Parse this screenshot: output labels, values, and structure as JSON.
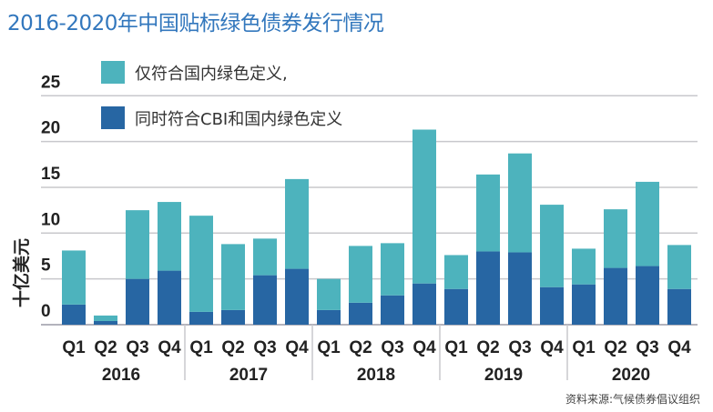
{
  "title": "2016-2020年中国贴标绿色债券发行情况",
  "source": "资料来源:气候债券倡议组织",
  "chart_data": {
    "type": "bar",
    "stacked": true,
    "title": "2016-2020年中国贴标绿色债券发行情况",
    "ylabel": "十亿美元",
    "ylim": [
      0,
      25
    ],
    "yticks": [
      0,
      5,
      10,
      15,
      20,
      25
    ],
    "grid": true,
    "legend_placement": "top-left",
    "years": [
      "2016",
      "2017",
      "2018",
      "2019",
      "2020"
    ],
    "quarters": [
      "Q1",
      "Q2",
      "Q3",
      "Q4"
    ],
    "categories": [
      "2016 Q1",
      "2016 Q2",
      "2016 Q3",
      "2016 Q4",
      "2017 Q1",
      "2017 Q2",
      "2017 Q3",
      "2017 Q4",
      "2018 Q1",
      "2018 Q2",
      "2018 Q3",
      "2018 Q4",
      "2019 Q1",
      "2019 Q2",
      "2019 Q3",
      "2019 Q4",
      "2020 Q1",
      "2020 Q2",
      "2020 Q3",
      "2020 Q4"
    ],
    "series": [
      {
        "name": "同时符合CBI和国内绿色定义",
        "color": "#2766a3",
        "values": [
          2.2,
          0.4,
          5.0,
          5.9,
          1.4,
          1.6,
          5.4,
          6.1,
          1.6,
          2.4,
          3.2,
          4.5,
          3.9,
          8.0,
          7.9,
          4.1,
          4.4,
          6.2,
          6.4,
          3.9
        ]
      },
      {
        "name": "仅符合国内绿色定义,",
        "color": "#4db3bd",
        "values": [
          5.9,
          0.6,
          7.5,
          7.5,
          10.5,
          7.2,
          4.0,
          9.8,
          3.4,
          6.2,
          5.7,
          16.8,
          3.7,
          8.4,
          10.8,
          9.0,
          3.9,
          6.4,
          9.2,
          4.8
        ]
      }
    ]
  }
}
